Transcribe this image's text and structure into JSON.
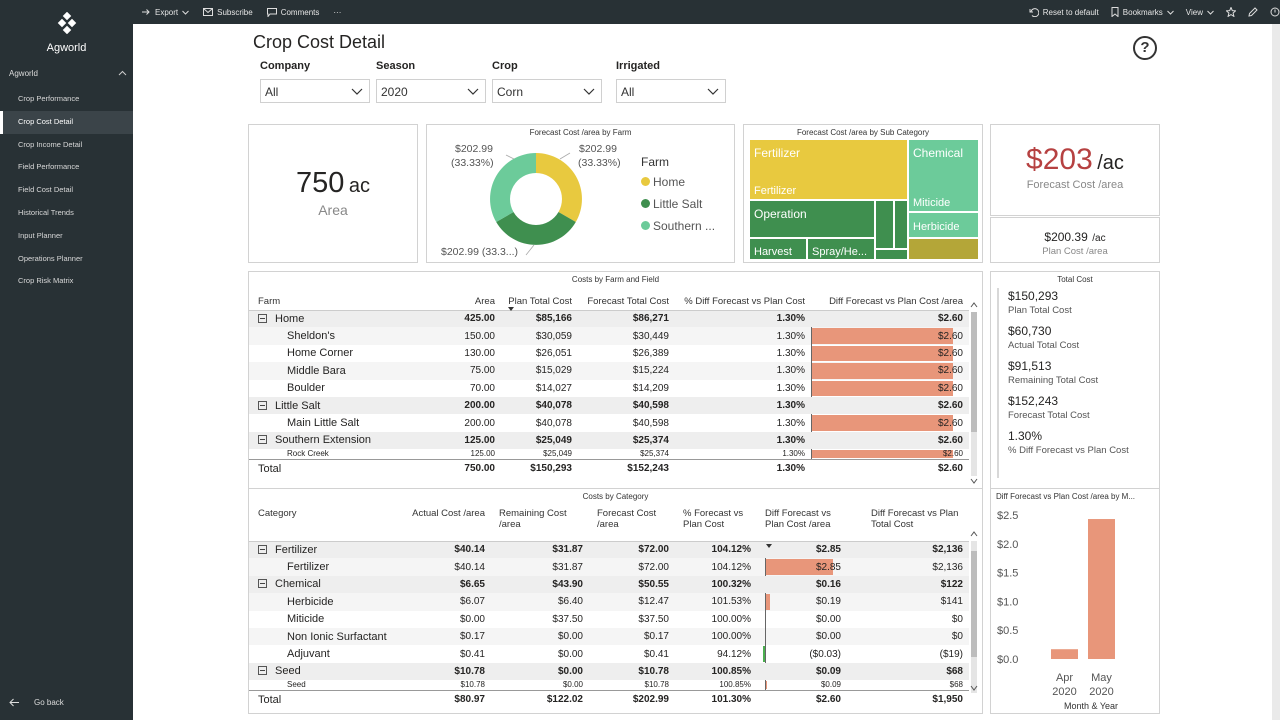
{
  "sidebar": {
    "app_title": "Agworld",
    "section": "Agworld",
    "items": [
      {
        "label": "Crop Performance"
      },
      {
        "label": "Crop Cost Detail"
      },
      {
        "label": "Crop Income Detail"
      },
      {
        "label": "Field Performance"
      },
      {
        "label": "Field Cost Detail"
      },
      {
        "label": "Historical Trends"
      },
      {
        "label": "Input Planner"
      },
      {
        "label": "Operations Planner"
      },
      {
        "label": "Crop Risk Matrix"
      }
    ],
    "go_back": "Go back"
  },
  "toolbar": {
    "export": "Export",
    "subscribe": "Subscribe",
    "comments": "Comments",
    "more": "···",
    "reset": "Reset to default",
    "bookmarks": "Bookmarks",
    "view": "View"
  },
  "page": {
    "title": "Crop Cost Detail",
    "help": "?"
  },
  "slicers": [
    {
      "label": "Company",
      "value": "All"
    },
    {
      "label": "Season",
      "value": "2020"
    },
    {
      "label": "Crop",
      "value": "Corn"
    },
    {
      "label": "Irrigated",
      "value": "All"
    }
  ],
  "area_card": {
    "value": "750",
    "unit": "ac",
    "label": "Area"
  },
  "donut": {
    "title": "Forecast Cost /area by Farm",
    "legend_title": "Farm",
    "label_left_1": "$202.99",
    "label_left_2": "(33.33%)",
    "label_right_1": "$202.99",
    "label_right_2": "(33.33%)",
    "label_bottom": "$202.99 (33.3...)",
    "legend": [
      {
        "label": "Home",
        "color": "#e8c93f"
      },
      {
        "label": "Little Salt",
        "color": "#3f8f4f"
      },
      {
        "label": "Southern ...",
        "color": "#6ccb9a"
      }
    ]
  },
  "treemap": {
    "title": "Forecast Cost /area by Sub Category",
    "fertilizer": "Fertilizer",
    "fertilizer_sub": "Fertilizer",
    "chemical": "Chemical",
    "miticide": "Miticide",
    "herbicide": "Herbicide",
    "operation": "Operation",
    "harvest": "Harvest",
    "spray": "Spray/He..."
  },
  "kpi_forecast": {
    "value": "$203",
    "unit": "/ac",
    "label": "Forecast Cost /area"
  },
  "kpi_plan": {
    "value": "$200.39",
    "unit": "/ac",
    "label": "Plan Cost /area"
  },
  "farm_table": {
    "title": "Costs by Farm and Field",
    "headers": [
      "Farm",
      "Area",
      "Plan Total Cost",
      "Forecast Total Cost",
      "% Diff Forecast vs Plan Cost",
      "Diff Forecast vs Plan Cost /area"
    ],
    "rows": [
      {
        "type": "grp",
        "name": "Home",
        "area": "425.00",
        "plan": "$85,166",
        "forecast": "$86,271",
        "pct": "1.30%",
        "diff": "$2.60",
        "bar": 0
      },
      {
        "type": "sub",
        "name": "Sheldon's",
        "area": "150.00",
        "plan": "$30,059",
        "forecast": "$30,449",
        "pct": "1.30%",
        "diff": "$2.60",
        "bar": 2.6
      },
      {
        "type": "sub",
        "name": "Home Corner",
        "area": "130.00",
        "plan": "$26,051",
        "forecast": "$26,389",
        "pct": "1.30%",
        "diff": "$2.60",
        "bar": 2.6
      },
      {
        "type": "sub",
        "name": "Middle Bara",
        "area": "75.00",
        "plan": "$15,029",
        "forecast": "$15,224",
        "pct": "1.30%",
        "diff": "$2.60",
        "bar": 2.6
      },
      {
        "type": "sub",
        "name": "Boulder",
        "area": "70.00",
        "plan": "$14,027",
        "forecast": "$14,209",
        "pct": "1.30%",
        "diff": "$2.60",
        "bar": 2.6
      },
      {
        "type": "grp",
        "name": "Little Salt",
        "area": "200.00",
        "plan": "$40,078",
        "forecast": "$40,598",
        "pct": "1.30%",
        "diff": "$2.60",
        "bar": 0
      },
      {
        "type": "sub",
        "name": "Main Little Salt",
        "area": "200.00",
        "plan": "$40,078",
        "forecast": "$40,598",
        "pct": "1.30%",
        "diff": "$2.60",
        "bar": 2.6
      },
      {
        "type": "grp",
        "name": "Southern Extension",
        "area": "125.00",
        "plan": "$25,049",
        "forecast": "$25,374",
        "pct": "1.30%",
        "diff": "$2.60",
        "bar": 0
      },
      {
        "type": "clip",
        "name": "Rock Creek",
        "area": "125.00",
        "plan": "$25,049",
        "forecast": "$25,374",
        "pct": "1.30%",
        "diff": "$2.60",
        "bar": 2.6
      }
    ],
    "total": {
      "name": "Total",
      "area": "750.00",
      "plan": "$150,293",
      "forecast": "$152,243",
      "pct": "1.30%",
      "diff": "$2.60"
    }
  },
  "total_cost": {
    "title": "Total Cost",
    "items": [
      {
        "value": "$150,293",
        "label": "Plan Total Cost"
      },
      {
        "value": "$60,730",
        "label": "Actual Total Cost"
      },
      {
        "value": "$91,513",
        "label": "Remaining Total Cost"
      },
      {
        "value": "$152,243",
        "label": "Forecast Total Cost"
      },
      {
        "value": "1.30%",
        "label": "% Diff Forecast vs Plan Cost"
      }
    ]
  },
  "category_table": {
    "title": "Costs by Category",
    "headers": [
      "Category",
      "Actual Cost /area",
      "Remaining Cost /area",
      "Forecast Cost /area",
      "% Forecast vs Plan Cost",
      "Diff Forecast vs Plan Cost /area",
      "Diff Forecast vs Plan Total Cost"
    ],
    "rows": [
      {
        "type": "grp",
        "name": "Fertilizer",
        "actual": "$40.14",
        "remaining": "$31.87",
        "forecast": "$72.00",
        "pct": "104.12%",
        "diff": "$2.85",
        "total": "$2,136",
        "bar": 0
      },
      {
        "type": "sub",
        "name": "Fertilizer",
        "actual": "$40.14",
        "remaining": "$31.87",
        "forecast": "$72.00",
        "pct": "104.12%",
        "diff": "$2.85",
        "total": "$2,136",
        "bar": 2.85
      },
      {
        "type": "grp",
        "name": "Chemical",
        "actual": "$6.65",
        "remaining": "$43.90",
        "forecast": "$50.55",
        "pct": "100.32%",
        "diff": "$0.16",
        "total": "$122",
        "bar": 0
      },
      {
        "type": "sub",
        "name": "Herbicide",
        "actual": "$6.07",
        "remaining": "$6.40",
        "forecast": "$12.47",
        "pct": "101.53%",
        "diff": "$0.19",
        "total": "$141",
        "bar": 0.19
      },
      {
        "type": "sub",
        "name": "Miticide",
        "actual": "$0.00",
        "remaining": "$37.50",
        "forecast": "$37.50",
        "pct": "100.00%",
        "diff": "$0.00",
        "total": "$0",
        "bar": 0
      },
      {
        "type": "sub",
        "name": "Non Ionic Surfactant",
        "actual": "$0.17",
        "remaining": "$0.00",
        "forecast": "$0.17",
        "pct": "100.00%",
        "diff": "$0.00",
        "total": "$0",
        "bar": 0
      },
      {
        "type": "sub",
        "name": "Adjuvant",
        "actual": "$0.41",
        "remaining": "$0.00",
        "forecast": "$0.41",
        "pct": "94.12%",
        "diff": "($0.03)",
        "total": "($19)",
        "bar": -0.03
      },
      {
        "type": "grp",
        "name": "Seed",
        "actual": "$10.78",
        "remaining": "$0.00",
        "forecast": "$10.78",
        "pct": "100.85%",
        "diff": "$0.09",
        "total": "$68",
        "bar": 0
      },
      {
        "type": "clip",
        "name": "Seed",
        "actual": "$10.78",
        "remaining": "$0.00",
        "forecast": "$10.78",
        "pct": "100.85%",
        "diff": "$0.09",
        "total": "$68",
        "bar": 0.09
      }
    ],
    "total": {
      "name": "Total",
      "actual": "$80.97",
      "remaining": "$122.02",
      "forecast": "$202.99",
      "pct": "101.30%",
      "diff": "$2.60",
      "total": "$1,950"
    }
  },
  "chart_data": {
    "type": "bar",
    "title": "Diff Forecast vs Plan Cost /area by M...",
    "categories": [
      "Apr 2020",
      "May 2020"
    ],
    "category_lines": [
      [
        "Apr",
        "2020"
      ],
      [
        "May",
        "2020"
      ]
    ],
    "values": [
      0.17,
      2.43
    ],
    "xlabel": "Month & Year",
    "ylabel": "",
    "ylim": [
      0,
      2.5
    ],
    "yticks": [
      "$0.0",
      "$0.5",
      "$1.0",
      "$1.5",
      "$2.0",
      "$2.5"
    ],
    "color": "#e8967a"
  }
}
